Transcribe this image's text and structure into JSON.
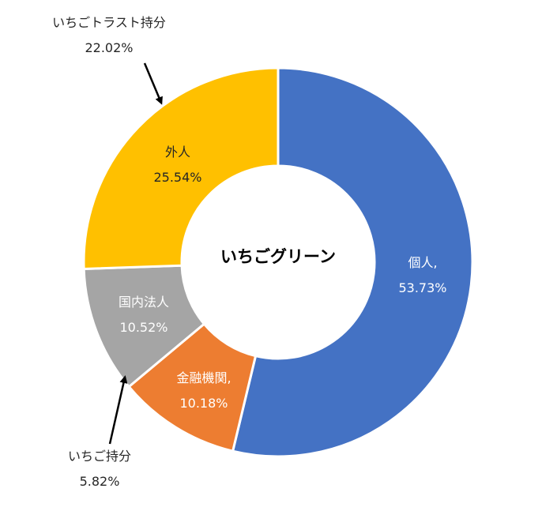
{
  "chart_data": {
    "type": "pie",
    "subtype": "donut",
    "center_label": "いちごグリーン",
    "slices": [
      {
        "label": "個人,",
        "value_label": "53.73%",
        "value": 53.73,
        "color": "#4472C4",
        "text_color": "#ffffff"
      },
      {
        "label": "金融機関,",
        "value_label": "10.18%",
        "value": 10.18,
        "color": "#ED7D31",
        "text_color": "#ffffff"
      },
      {
        "label": "国内法人",
        "value_label": "10.52%",
        "value": 10.52,
        "color": "#A5A5A5",
        "text_color": "#ffffff"
      },
      {
        "label": "外人",
        "value_label": "25.54%",
        "value": 25.54,
        "color": "#FFC000",
        "text_color": "#262626"
      }
    ],
    "annotations": [
      {
        "label": "いちごトラスト持分",
        "value_label": "22.02%",
        "value": 22.02
      },
      {
        "label": "いちご持分",
        "value_label": "5.82%",
        "value": 5.82
      }
    ]
  }
}
